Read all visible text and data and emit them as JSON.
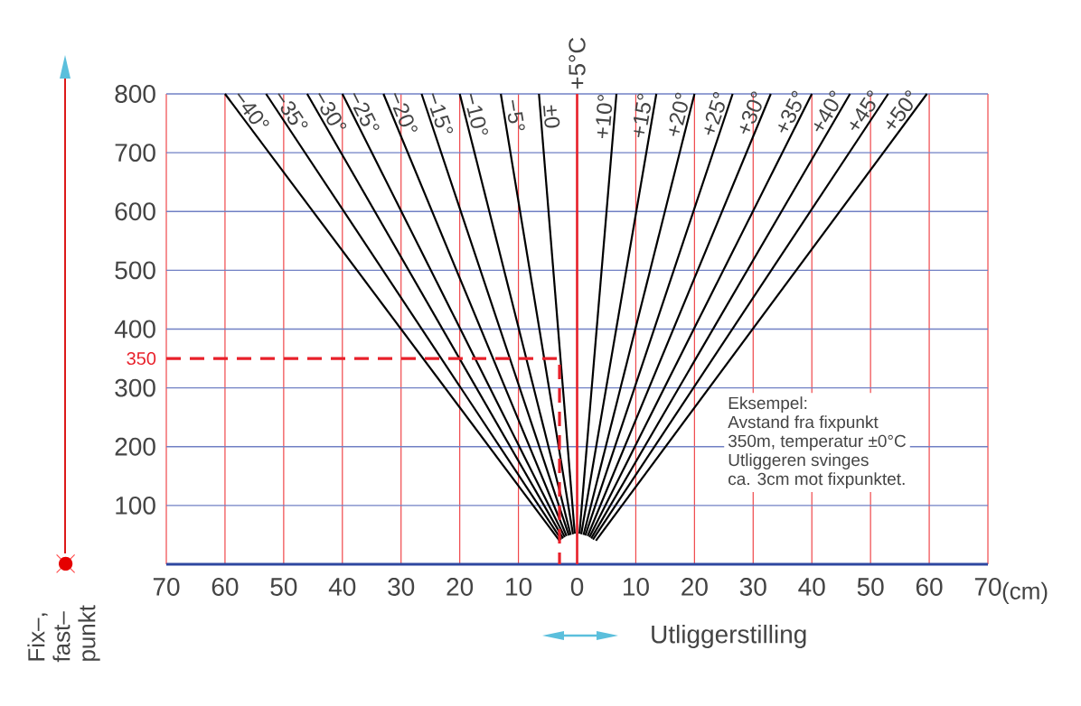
{
  "chart_data": {
    "type": "line",
    "xlabel": "Utliggerstilling",
    "ylabel": "Fix–, fast– punkt",
    "xlim": [
      -70,
      70
    ],
    "ylim": [
      0,
      800
    ],
    "xticks": [
      {
        "value": -70,
        "label": "70"
      },
      {
        "value": -60,
        "label": "60"
      },
      {
        "value": -50,
        "label": "50"
      },
      {
        "value": -40,
        "label": "40"
      },
      {
        "value": -30,
        "label": "30"
      },
      {
        "value": -20,
        "label": "20"
      },
      {
        "value": -10,
        "label": "10"
      },
      0,
      10,
      20,
      30,
      40,
      50,
      60,
      70
    ],
    "yticks": [
      100,
      200,
      300,
      350,
      400,
      500,
      600,
      700,
      800
    ],
    "grid": true,
    "series": [
      {
        "name": "−40°",
        "color": "#000000",
        "x": [
          -3,
          -60
        ],
        "values": [
          40,
          800
        ]
      },
      {
        "name": "−35°",
        "color": "#000000",
        "x": [
          -2.7,
          -53
        ],
        "values": [
          42,
          800
        ]
      },
      {
        "name": "−30°",
        "color": "#000000",
        "x": [
          -2.4,
          -46
        ],
        "values": [
          44,
          800
        ]
      },
      {
        "name": "−25°",
        "color": "#000000",
        "x": [
          -2.1,
          -40
        ],
        "values": [
          46,
          800
        ]
      },
      {
        "name": "−20°",
        "color": "#000000",
        "x": [
          -1.8,
          -33
        ],
        "values": [
          48,
          800
        ]
      },
      {
        "name": "−15°",
        "color": "#000000",
        "x": [
          -1.4,
          -26.5
        ],
        "values": [
          49,
          800
        ]
      },
      {
        "name": "−10°",
        "color": "#000000",
        "x": [
          -1.1,
          -20
        ],
        "values": [
          50,
          800
        ]
      },
      {
        "name": "−5°",
        "color": "#000000",
        "x": [
          -0.7,
          -13
        ],
        "values": [
          51,
          800
        ]
      },
      {
        "name": "±0",
        "color": "#000000",
        "x": [
          -0.4,
          -6.5
        ],
        "values": [
          52,
          800
        ]
      },
      {
        "name": "+5°C",
        "color": "#e8202a",
        "x": [
          0,
          0
        ],
        "values": [
          0,
          800
        ]
      },
      {
        "name": "+10°",
        "color": "#000000",
        "x": [
          0.4,
          6.7
        ],
        "values": [
          52,
          800
        ]
      },
      {
        "name": "+15°",
        "color": "#000000",
        "x": [
          0.7,
          13.5
        ],
        "values": [
          51,
          800
        ]
      },
      {
        "name": "+20°",
        "color": "#000000",
        "x": [
          1.1,
          20
        ],
        "values": [
          50,
          800
        ]
      },
      {
        "name": "+25°",
        "color": "#000000",
        "x": [
          1.4,
          26.5
        ],
        "values": [
          49,
          800
        ]
      },
      {
        "name": "+30°",
        "color": "#000000",
        "x": [
          1.8,
          33
        ],
        "values": [
          48,
          800
        ]
      },
      {
        "name": "+35°",
        "color": "#000000",
        "x": [
          2.1,
          40
        ],
        "values": [
          46,
          800
        ]
      },
      {
        "name": "+40°",
        "color": "#000000",
        "x": [
          2.4,
          46.5
        ],
        "values": [
          44,
          800
        ]
      },
      {
        "name": "+45°",
        "color": "#000000",
        "x": [
          2.7,
          53
        ],
        "values": [
          42,
          800
        ]
      },
      {
        "name": "+50°",
        "color": "#000000",
        "x": [
          3.2,
          59.6
        ],
        "values": [
          40,
          800
        ]
      },
      {
        "color": "#e8202a",
        "line_style": "dashed",
        "x": [
          -70,
          -3,
          -3
        ],
        "values": [
          350,
          350,
          0
        ]
      }
    ],
    "annotations": [
      "Eksempel:",
      "Avstand fra fixpunkt",
      "350m, temperatur ±0°C",
      "Utliggeren svinges",
      "ca. 3cm mot fixpunktet.",
      "(cm)"
    ]
  }
}
